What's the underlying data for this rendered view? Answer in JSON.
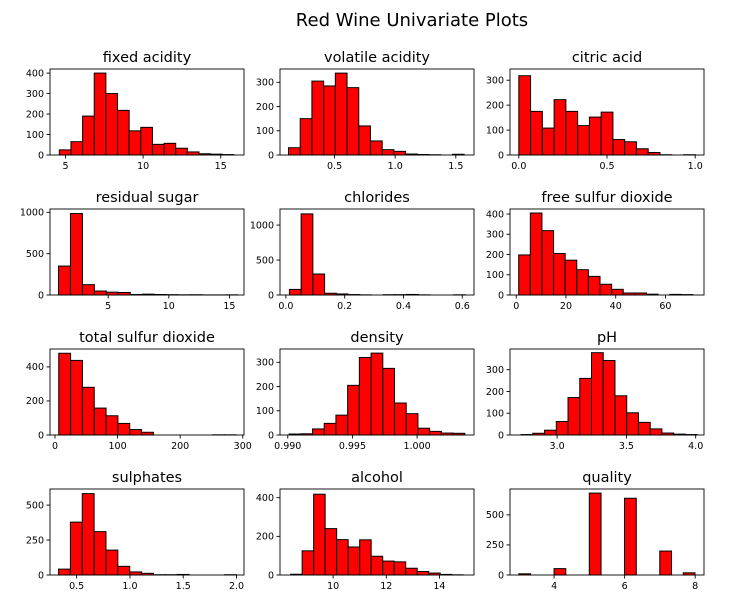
{
  "figure": {
    "title": "Red Wine Univariate Plots",
    "bar_color": "#ff0000",
    "edge_color": "#000000"
  },
  "chart_data": [
    {
      "type": "bar",
      "title": "fixed acidity",
      "xlim": [
        4.0,
        16.5
      ],
      "ylim": [
        0,
        420
      ],
      "bin_start": 4.6,
      "bin_width": 0.75,
      "values": [
        25,
        65,
        190,
        400,
        300,
        218,
        118,
        135,
        52,
        57,
        33,
        15,
        6,
        4,
        2
      ],
      "xticks": [
        5,
        10,
        15
      ],
      "xtick_labels": [
        "5",
        "10",
        "15"
      ],
      "yticks": [
        0,
        100,
        200,
        300,
        400
      ],
      "ytick_labels": [
        "0",
        "100",
        "200",
        "300",
        "400"
      ]
    },
    {
      "type": "bar",
      "title": "volatile acidity",
      "xlim": [
        0.05,
        1.65
      ],
      "ylim": [
        0,
        355
      ],
      "bin_start": 0.12,
      "bin_width": 0.0966,
      "values": [
        30,
        150,
        305,
        285,
        338,
        278,
        120,
        58,
        22,
        15,
        4,
        2,
        1,
        0,
        3
      ],
      "xticks": [
        0.5,
        1.0,
        1.5
      ],
      "xtick_labels": [
        "0.5",
        "1.0",
        "1.5"
      ],
      "yticks": [
        0,
        100,
        200,
        300
      ],
      "ytick_labels": [
        "0",
        "100",
        "200",
        "300"
      ]
    },
    {
      "type": "bar",
      "title": "citric acid",
      "xlim": [
        -0.05,
        1.05
      ],
      "ylim": [
        0,
        345
      ],
      "bin_start": 0.0,
      "bin_width": 0.0667,
      "values": [
        318,
        175,
        108,
        222,
        175,
        118,
        152,
        172,
        62,
        53,
        25,
        10,
        1,
        0,
        1
      ],
      "xticks": [
        0.0,
        0.5,
        1.0
      ],
      "xtick_labels": [
        "0.0",
        "0.5",
        "1.0"
      ],
      "yticks": [
        0,
        100,
        200,
        300
      ],
      "ytick_labels": [
        "0",
        "100",
        "200",
        "300"
      ]
    },
    {
      "type": "bar",
      "title": "residual sugar",
      "xlim": [
        0.2,
        16.2
      ],
      "ylim": [
        0,
        1040
      ],
      "bin_start": 0.9,
      "bin_width": 0.987,
      "values": [
        350,
        985,
        125,
        48,
        34,
        30,
        6,
        10,
        6,
        4,
        2,
        3,
        1,
        1,
        2
      ],
      "xticks": [
        5,
        10,
        15
      ],
      "xtick_labels": [
        "5",
        "10",
        "15"
      ],
      "yticks": [
        0,
        500,
        1000
      ],
      "ytick_labels": [
        "0",
        "500",
        "1000"
      ]
    },
    {
      "type": "bar",
      "title": "chlorides",
      "xlim": [
        -0.02,
        0.64
      ],
      "ylim": [
        0,
        1230
      ],
      "bin_start": 0.012,
      "bin_width": 0.0399,
      "values": [
        80,
        1160,
        300,
        25,
        15,
        6,
        2,
        0,
        4,
        5,
        8,
        2,
        0,
        0,
        3
      ],
      "xticks": [
        0.0,
        0.2,
        0.4,
        0.6
      ],
      "xtick_labels": [
        "0.0",
        "0.2",
        "0.4",
        "0.6"
      ],
      "yticks": [
        0,
        500,
        1000
      ],
      "ytick_labels": [
        "0",
        "500",
        "1000"
      ]
    },
    {
      "type": "bar",
      "title": "free sulfur dioxide",
      "xlim": [
        -2.5,
        75.5
      ],
      "ylim": [
        0,
        425
      ],
      "bin_start": 1.0,
      "bin_width": 4.67,
      "values": [
        198,
        405,
        318,
        205,
        172,
        125,
        92,
        53,
        28,
        10,
        10,
        4,
        0,
        3,
        2
      ],
      "xticks": [
        0,
        20,
        40,
        60
      ],
      "xtick_labels": [
        "0",
        "20",
        "40",
        "60"
      ],
      "yticks": [
        0,
        100,
        200,
        300,
        400
      ],
      "ytick_labels": [
        "0",
        "100",
        "200",
        "300",
        "400"
      ]
    },
    {
      "type": "bar",
      "title": "total sulfur dioxide",
      "xlim": [
        -8,
        302
      ],
      "ylim": [
        0,
        505
      ],
      "bin_start": 6.0,
      "bin_width": 18.9,
      "values": [
        480,
        438,
        280,
        158,
        113,
        68,
        32,
        16,
        0,
        0,
        0,
        0,
        0,
        1,
        1
      ],
      "xticks": [
        0,
        100,
        200,
        300
      ],
      "xtick_labels": [
        "0",
        "100",
        "200",
        "300"
      ],
      "yticks": [
        0,
        200,
        400
      ],
      "ytick_labels": [
        "0",
        "200",
        "400"
      ]
    },
    {
      "type": "bar",
      "title": "density",
      "xlim": [
        0.9894,
        1.0044
      ],
      "ylim": [
        0,
        355
      ],
      "bin_start": 0.9901,
      "bin_width": 0.000906,
      "values": [
        4,
        5,
        25,
        48,
        82,
        205,
        320,
        338,
        275,
        132,
        88,
        28,
        15,
        8,
        7
      ],
      "xticks": [
        0.99,
        0.995,
        1.0
      ],
      "xtick_labels": [
        "0.990",
        "0.995",
        "1.000"
      ],
      "yticks": [
        0,
        100,
        200,
        300
      ],
      "ytick_labels": [
        "0",
        "100",
        "200",
        "300"
      ]
    },
    {
      "type": "bar",
      "title": "pH",
      "xlim": [
        2.66,
        4.06
      ],
      "ylim": [
        0,
        395
      ],
      "bin_start": 2.74,
      "bin_width": 0.0847,
      "values": [
        2,
        8,
        22,
        62,
        172,
        260,
        378,
        342,
        180,
        102,
        58,
        28,
        9,
        4,
        2
      ],
      "xticks": [
        3.0,
        3.5,
        4.0
      ],
      "xtick_labels": [
        "3.0",
        "3.5",
        "4.0"
      ],
      "yticks": [
        0,
        100,
        200,
        300
      ],
      "ytick_labels": [
        "0",
        "100",
        "200",
        "300"
      ]
    },
    {
      "type": "bar",
      "title": "sulphates",
      "xlim": [
        0.25,
        2.07
      ],
      "ylim": [
        0,
        615
      ],
      "bin_start": 0.33,
      "bin_width": 0.1113,
      "values": [
        42,
        378,
        582,
        310,
        178,
        62,
        22,
        12,
        2,
        2,
        4,
        0,
        0,
        0,
        2
      ],
      "xticks": [
        0.5,
        1.0,
        1.5,
        2.0
      ],
      "xtick_labels": [
        "0.5",
        "1.0",
        "1.5",
        "2.0"
      ],
      "yticks": [
        0,
        250,
        500
      ],
      "ytick_labels": [
        "0",
        "250",
        "500"
      ]
    },
    {
      "type": "bar",
      "title": "alcohol",
      "xlim": [
        8.0,
        15.3
      ],
      "ylim": [
        0,
        445
      ],
      "bin_start": 8.4,
      "bin_width": 0.433,
      "values": [
        4,
        125,
        418,
        240,
        183,
        145,
        182,
        97,
        72,
        68,
        35,
        18,
        10,
        3,
        1
      ],
      "xticks": [
        10,
        12,
        14
      ],
      "xtick_labels": [
        "10",
        "12",
        "14"
      ],
      "yticks": [
        0,
        200,
        400
      ],
      "ytick_labels": [
        "0",
        "200",
        "400"
      ]
    },
    {
      "type": "bar",
      "title": "quality",
      "xlim": [
        2.75,
        8.25
      ],
      "ylim": [
        0,
        715
      ],
      "bin_start": 3.0,
      "bin_width": 0.333,
      "values": [
        10,
        0,
        0,
        53,
        0,
        0,
        681,
        0,
        0,
        638,
        0,
        0,
        199,
        0,
        18
      ],
      "xticks": [
        4,
        6,
        8
      ],
      "xtick_labels": [
        "4",
        "6",
        "8"
      ],
      "yticks": [
        0,
        250,
        500
      ],
      "ytick_labels": [
        "0",
        "250",
        "500"
      ]
    }
  ]
}
